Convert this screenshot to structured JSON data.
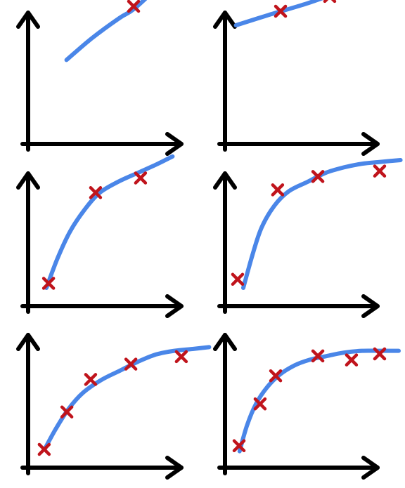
{
  "chart_data": [
    {
      "type": "scatter",
      "title": "",
      "xlabel": "",
      "ylabel": "",
      "grid": false,
      "xlim": [
        0,
        10
      ],
      "ylim": [
        0,
        10
      ],
      "points": [
        {
          "x": 5.77,
          "y": 7.54
        }
      ],
      "fit": {
        "x": [
          2.1,
          3.5,
          5.0,
          5.8,
          7.2,
          8.6
        ],
        "y": [
          4.6,
          5.8,
          6.9,
          7.4,
          8.7,
          10.1
        ]
      }
    },
    {
      "type": "scatter",
      "title": "",
      "xlabel": "",
      "ylabel": "",
      "grid": false,
      "xlim": [
        0,
        10
      ],
      "ylim": [
        0,
        10
      ],
      "points": [
        {
          "x": 3.04,
          "y": 7.27
        },
        {
          "x": 5.73,
          "y": 8.08
        }
      ],
      "fit": {
        "x": [
          0.6,
          2.5,
          4.5,
          6.5,
          8.5,
          9.9
        ],
        "y": [
          6.5,
          7.1,
          7.7,
          8.4,
          9.0,
          9.4
        ]
      }
    },
    {
      "type": "scatter",
      "title": "",
      "xlabel": "",
      "ylabel": "",
      "grid": false,
      "xlim": [
        0,
        10
      ],
      "ylim": [
        0,
        10
      ],
      "points": [
        {
          "x": 1.12,
          "y": 1.25
        },
        {
          "x": 3.69,
          "y": 6.22
        },
        {
          "x": 6.15,
          "y": 7.02
        }
      ],
      "fit": {
        "x": [
          1.0,
          1.6,
          2.3,
          3.1,
          3.9,
          4.9,
          6.0,
          7.1,
          7.9
        ],
        "y": [
          1.0,
          2.6,
          4.1,
          5.3,
          6.2,
          6.8,
          7.3,
          7.8,
          8.2
        ]
      }
    },
    {
      "type": "scatter",
      "title": "",
      "xlabel": "",
      "ylabel": "",
      "grid": false,
      "xlim": [
        0,
        10
      ],
      "ylim": [
        0,
        10
      ],
      "points": [
        {
          "x": 0.69,
          "y": 1.47
        },
        {
          "x": 2.88,
          "y": 6.37
        },
        {
          "x": 5.08,
          "y": 7.1
        },
        {
          "x": 8.46,
          "y": 7.4
        }
      ],
      "fit": {
        "x": [
          1.0,
          1.5,
          2.0,
          2.7,
          3.5,
          4.5,
          5.5,
          6.5,
          7.5,
          8.5,
          9.6
        ],
        "y": [
          1.0,
          2.8,
          4.3,
          5.5,
          6.3,
          6.8,
          7.3,
          7.6,
          7.8,
          7.9,
          8.0
        ]
      }
    },
    {
      "type": "scatter",
      "title": "",
      "xlabel": "",
      "ylabel": "",
      "grid": false,
      "xlim": [
        0,
        10
      ],
      "ylim": [
        0,
        10
      ],
      "points": [
        {
          "x": 0.88,
          "y": 1.0
        },
        {
          "x": 2.12,
          "y": 3.05
        },
        {
          "x": 3.42,
          "y": 4.83
        },
        {
          "x": 5.62,
          "y": 5.67
        },
        {
          "x": 8.38,
          "y": 6.08
        }
      ],
      "fit": {
        "x": [
          0.9,
          1.5,
          2.2,
          3.0,
          4.0,
          5.0,
          6.0,
          7.0,
          8.0,
          9.0,
          9.9
        ],
        "y": [
          1.0,
          2.1,
          3.2,
          4.1,
          4.8,
          5.3,
          5.8,
          6.2,
          6.4,
          6.5,
          6.6
        ]
      }
    },
    {
      "type": "scatter",
      "title": "",
      "xlabel": "",
      "ylabel": "",
      "grid": false,
      "xlim": [
        0,
        10
      ],
      "ylim": [
        0,
        10
      ],
      "points": [
        {
          "x": 0.77,
          "y": 1.2
        },
        {
          "x": 1.92,
          "y": 3.49
        },
        {
          "x": 2.77,
          "y": 5.03
        },
        {
          "x": 5.08,
          "y": 6.12
        },
        {
          "x": 6.92,
          "y": 5.9
        },
        {
          "x": 8.46,
          "y": 6.23
        }
      ],
      "fit": {
        "x": [
          0.8,
          1.2,
          1.7,
          2.3,
          3.0,
          3.8,
          4.6,
          5.5,
          6.5,
          7.5,
          8.5,
          9.5
        ],
        "y": [
          0.9,
          2.3,
          3.5,
          4.4,
          5.1,
          5.6,
          5.9,
          6.1,
          6.3,
          6.4,
          6.4,
          6.4
        ]
      }
    }
  ],
  "colors": {
    "axis": "#000000",
    "fit_line": "#4a86e8",
    "marker": "#c0141c",
    "background": "#ffffff"
  }
}
